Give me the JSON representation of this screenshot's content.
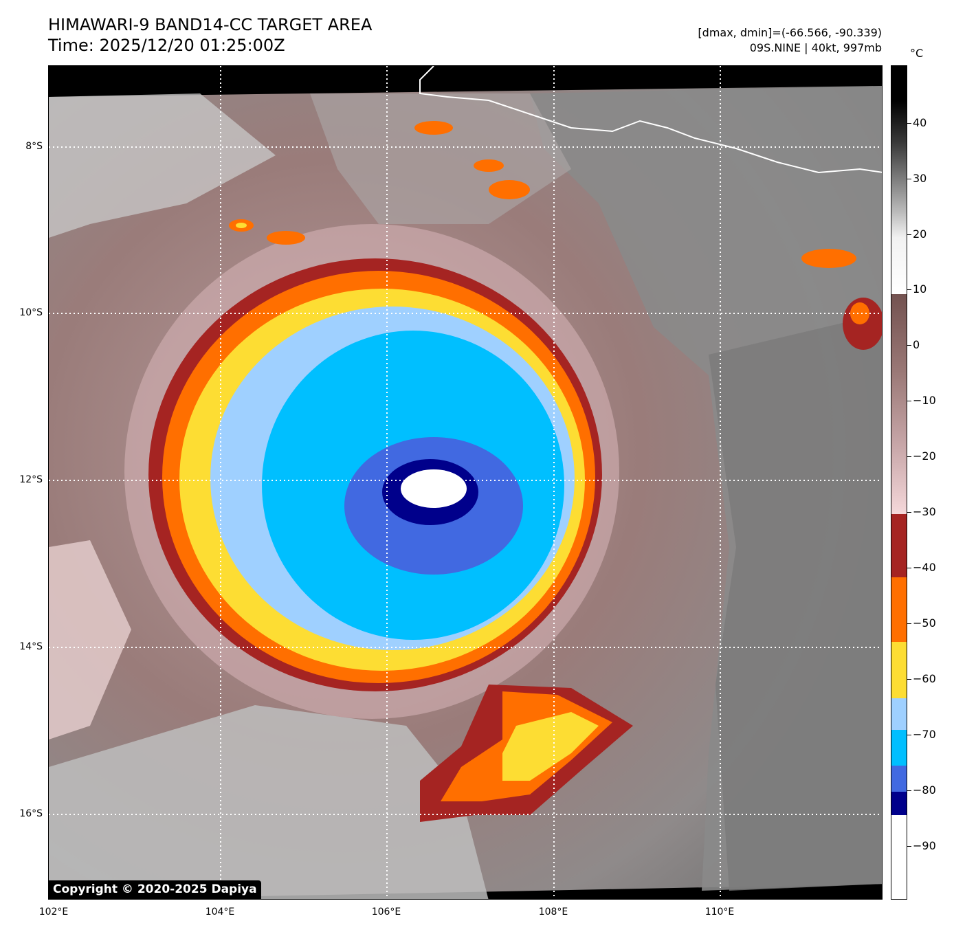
{
  "header": {
    "title_line1": "HIMAWARI-9 BAND14-CC TARGET AREA",
    "title_line2": "Time: 2025/12/20 01:25:00Z",
    "info_line1": "[dmax, dmin]=(-66.566, -90.339)",
    "info_line2": "09S.NINE | 40kt, 997mb"
  },
  "map": {
    "lat_labels": [
      "8°S",
      "10°S",
      "12°S",
      "14°S",
      "16°S"
    ],
    "lon_labels": [
      "102°E",
      "104°E",
      "106°E",
      "108°E",
      "110°E"
    ],
    "copyright": "Copyright © 2020-2025 Dapiya"
  },
  "colorbar": {
    "unit": "°C",
    "tick_labels": [
      "40",
      "30",
      "20",
      "10",
      "0",
      "−10",
      "−20",
      "−30",
      "−40",
      "−50",
      "−60",
      "−70",
      "−80",
      "−90"
    ],
    "colors": {
      "white": "#ffffff",
      "navy": "#00008b",
      "royal_blue": "#4169e1",
      "deep_sky_blue": "#00bfff",
      "light_sky_blue": "#9fd0ff",
      "gold": "#fddd33",
      "orange": "#ff6f00",
      "dark_red": "#a52422",
      "pink": "#f5d8da",
      "brown": "#7d5654",
      "light_gray": "#f5f5f5",
      "black": "#000000"
    }
  }
}
